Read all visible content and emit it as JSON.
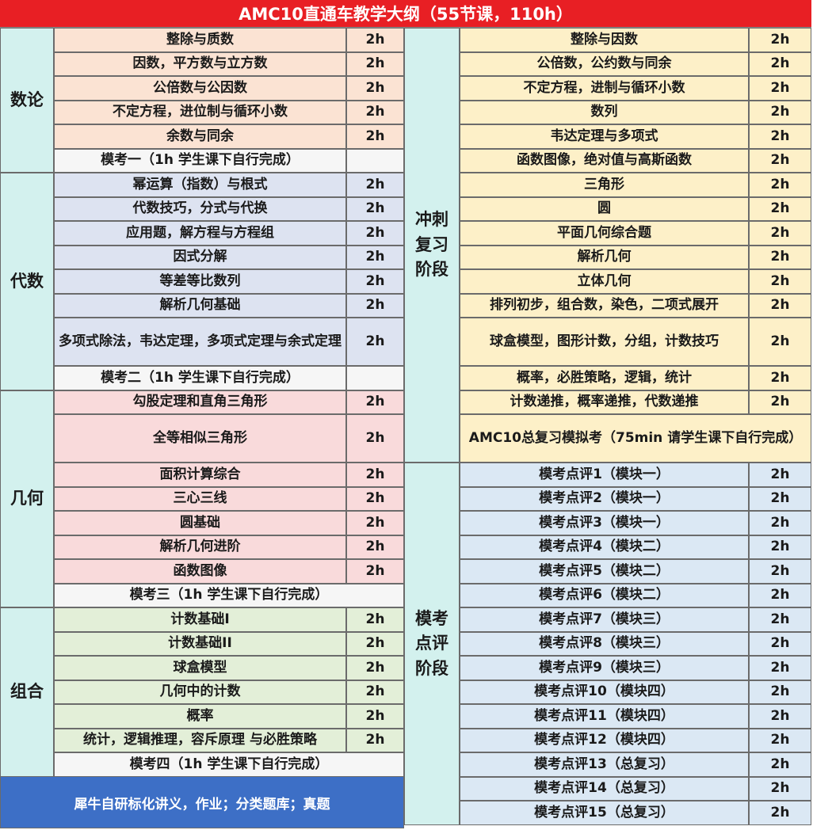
{
  "title": "AMC10直通车教学大纲（55节课，110h）",
  "left": [
    {
      "category": "数论",
      "color": "#fbe3d3",
      "rows": [
        {
          "topic": "整除与质数",
          "hours": "2h"
        },
        {
          "topic": "因数，平方数与立方数",
          "hours": "2h"
        },
        {
          "topic": "公倍数与公因数",
          "hours": "2h"
        },
        {
          "topic": "不定方程，进位制与循环小数",
          "hours": "2h"
        },
        {
          "topic": "余数与同余",
          "hours": "2h"
        },
        {
          "topic": "模考一（1h 学生课下自行完成）",
          "hours": "",
          "mock": true
        }
      ]
    },
    {
      "category": "代数",
      "color": "#dde3f1",
      "rows": [
        {
          "topic": "幂运算（指数）与根式",
          "hours": "2h"
        },
        {
          "topic": "代数技巧，分式与代换",
          "hours": "2h"
        },
        {
          "topic": "应用题，解方程与方程组",
          "hours": "2h"
        },
        {
          "topic": "因式分解",
          "hours": "2h"
        },
        {
          "topic": "等差等比数列",
          "hours": "2h"
        },
        {
          "topic": "解析几何基础",
          "hours": "2h"
        },
        {
          "topic": "多项式除法，韦达定理，多项式定理与余式定理",
          "hours": "2h"
        },
        {
          "topic": "模考二（1h 学生课下自行完成）",
          "hours": "",
          "mock": true
        }
      ]
    },
    {
      "category": "几何",
      "color": "#f9dadb",
      "rows": [
        {
          "topic": "勾股定理和直角三角形",
          "hours": "2h"
        },
        {
          "topic": "全等相似三角形",
          "hours": "2h"
        },
        {
          "topic": "面积计算综合",
          "hours": "2h"
        },
        {
          "topic": "三心三线",
          "hours": "2h"
        },
        {
          "topic": "圆基础",
          "hours": "2h"
        },
        {
          "topic": "解析几何进阶",
          "hours": "2h"
        },
        {
          "topic": "函数图像",
          "hours": "2h"
        },
        {
          "topic": "模考三（1h 学生课下自行完成）",
          "mock": true,
          "merged": true
        }
      ]
    },
    {
      "category": "组合",
      "color": "#e3efd8",
      "rows": [
        {
          "topic": "计数基础I",
          "hours": "2h"
        },
        {
          "topic": "计数基础II",
          "hours": "2h"
        },
        {
          "topic": "球盒模型",
          "hours": "2h"
        },
        {
          "topic": "几何中的计数",
          "hours": "2h"
        },
        {
          "topic": "概率",
          "hours": "2h"
        },
        {
          "topic": "统计，逻辑推理，容斥原理 与必胜策略",
          "hours": "2h"
        },
        {
          "topic": "模考四（1h 学生课下自行完成）",
          "mock": true,
          "merged": true
        }
      ]
    }
  ],
  "footer": "犀牛自研标化讲义，作业；分类题库；真题",
  "right": [
    {
      "category": "冲刺复习阶段",
      "color": "#fdf0c8",
      "rows": [
        {
          "topic": "整除与因数",
          "hours": "2h"
        },
        {
          "topic": "公倍数，公约数与同余",
          "hours": "2h"
        },
        {
          "topic": "不定方程，进制与循环小数",
          "hours": "2h"
        },
        {
          "topic": "数列",
          "hours": "2h"
        },
        {
          "topic": "韦达定理与多项式",
          "hours": "2h"
        },
        {
          "topic": "函数图像，绝对值与高斯函数",
          "hours": "2h"
        },
        {
          "topic": "三角形",
          "hours": "2h"
        },
        {
          "topic": "圆",
          "hours": "2h"
        },
        {
          "topic": "平面几何综合题",
          "hours": "2h"
        },
        {
          "topic": "解析几何",
          "hours": "2h"
        },
        {
          "topic": "立体几何",
          "hours": "2h"
        },
        {
          "topic": "排列初步，组合数，染色，二项式展开",
          "hours": "2h"
        },
        {
          "topic": "球盒模型，图形计数，分组，计数技巧",
          "hours": "2h"
        },
        {
          "topic": "概率，必胜策略，逻辑，统计",
          "hours": "2h"
        },
        {
          "topic": "计数递推，概率递推，代数递推",
          "hours": "2h"
        },
        {
          "topic": "AMC10总复习模拟考（75min 请学生课下自行完成）",
          "merged": true
        }
      ]
    },
    {
      "category": "模考点评阶段",
      "color": "#dbe8f4",
      "rows": [
        {
          "topic": "模考点评1（模块一）",
          "hours": "2h"
        },
        {
          "topic": "模考点评2（模块一）",
          "hours": "2h"
        },
        {
          "topic": "模考点评3（模块一）",
          "hours": "2h"
        },
        {
          "topic": "模考点评4（模块二）",
          "hours": "2h"
        },
        {
          "topic": "模考点评5（模块二）",
          "hours": "2h"
        },
        {
          "topic": "模考点评6（模块二）",
          "hours": "2h"
        },
        {
          "topic": "模考点评7（模块三）",
          "hours": "2h"
        },
        {
          "topic": "模考点评8（模块三）",
          "hours": "2h"
        },
        {
          "topic": "模考点评9（模块三）",
          "hours": "2h"
        },
        {
          "topic": "模考点评10（模块四）",
          "hours": "2h"
        },
        {
          "topic": "模考点评11（模块四）",
          "hours": "2h"
        },
        {
          "topic": "模考点评12（模块四）",
          "hours": "2h"
        },
        {
          "topic": "模考点评13（总复习）",
          "hours": "2h"
        },
        {
          "topic": "模考点评14（总复习）",
          "hours": "2h"
        },
        {
          "topic": "模考点评15（总复习）",
          "hours": "2h"
        }
      ]
    }
  ],
  "colors": {
    "header": "#e81f24",
    "category": "#d3f1ee",
    "mock": "#f6f6f6",
    "footer": "#3d6fc6"
  }
}
